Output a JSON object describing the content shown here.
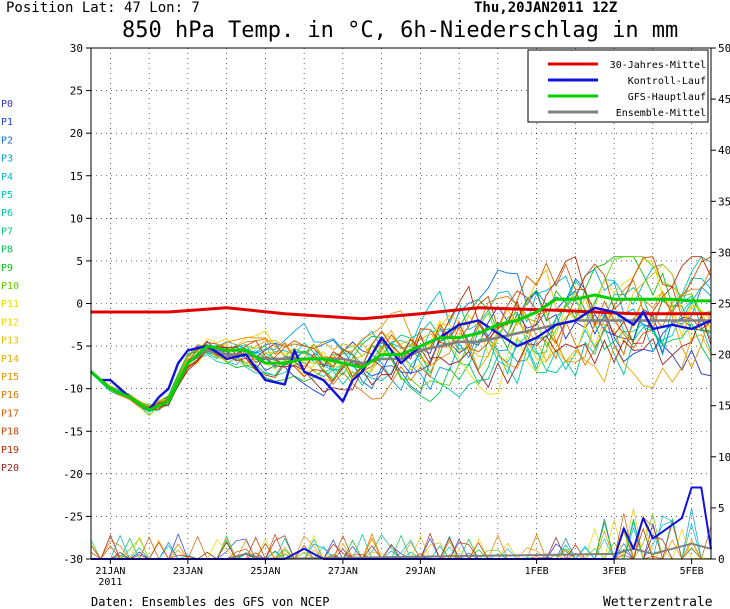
{
  "header": {
    "position": "Position  Lat: 47 Lon: 7",
    "date": "Thu,20JAN2011  12Z",
    "title": "850 hPa Temp. in °C, 6h-Niederschlag in mm"
  },
  "footer": {
    "source": "Daten: Ensembles des GFS von NCEP",
    "brand": "Wetterzentrale"
  },
  "colors": {
    "clim": "#e00000",
    "control": "#1010e0",
    "gfs": "#00d000",
    "mean": "#808080"
  },
  "chart_data": {
    "type": "line",
    "title": "850 hPa Temp. in °C, 6h-Niederschlag in mm",
    "x_unit": "hours from 2011-01-20 12Z",
    "xlim": [
      0,
      384
    ],
    "ylim_left": [
      -30,
      30
    ],
    "ylim_right": [
      0,
      50
    ],
    "yticks_left": [
      30,
      25,
      20,
      15,
      10,
      5,
      0,
      -5,
      -10,
      -15,
      -20,
      -25,
      -30
    ],
    "yticks_right": [
      50,
      45,
      40,
      35,
      30,
      25,
      20,
      15,
      10,
      5,
      0
    ],
    "grid": true,
    "legend_position": "top-right",
    "xticks": [
      {
        "h": 12,
        "label": "21JAN",
        "sub": "2011"
      },
      {
        "h": 60,
        "label": "23JAN"
      },
      {
        "h": 108,
        "label": "25JAN"
      },
      {
        "h": 156,
        "label": "27JAN"
      },
      {
        "h": 204,
        "label": "29JAN"
      },
      {
        "h": 276,
        "label": "1FEB"
      },
      {
        "h": 324,
        "label": "3FEB"
      },
      {
        "h": 372,
        "label": "5FEB"
      }
    ],
    "legend": [
      {
        "label": "30-Jahres-Mittel",
        "color": "#e00000"
      },
      {
        "label": "Kontroll-Lauf",
        "color": "#1010e0"
      },
      {
        "label": "GFS-Hauptlauf",
        "color": "#00d000"
      },
      {
        "label": "Ensemble-Mittel",
        "color": "#808080"
      }
    ],
    "members": [
      {
        "name": "P0",
        "color": "#3030c8"
      },
      {
        "name": "P1",
        "color": "#2040e0"
      },
      {
        "name": "P2",
        "color": "#1070e0"
      },
      {
        "name": "P3",
        "color": "#00a0e0"
      },
      {
        "name": "P4",
        "color": "#00b8d0"
      },
      {
        "name": "P5",
        "color": "#00c8c0"
      },
      {
        "name": "P6",
        "color": "#00c8a0"
      },
      {
        "name": "P7",
        "color": "#00c878"
      },
      {
        "name": "P8",
        "color": "#00c850"
      },
      {
        "name": "P9",
        "color": "#10c010"
      },
      {
        "name": "P10",
        "color": "#60d000"
      },
      {
        "name": "P11",
        "color": "#e8e000"
      },
      {
        "name": "P12",
        "color": "#f0d000"
      },
      {
        "name": "P13",
        "color": "#f0c000"
      },
      {
        "name": "P14",
        "color": "#e8a800"
      },
      {
        "name": "P15",
        "color": "#e89000"
      },
      {
        "name": "P16",
        "color": "#e07800"
      },
      {
        "name": "P17",
        "color": "#d85800"
      },
      {
        "name": "P18",
        "color": "#d04000"
      },
      {
        "name": "P19",
        "color": "#c02800"
      },
      {
        "name": "P20",
        "color": "#a02020"
      }
    ],
    "series": [
      {
        "name": "30-Jahres-Mittel",
        "role": "clim",
        "x": [
          0,
          48,
          84,
          120,
          168,
          204,
          240,
          288,
          336,
          384
        ],
        "values": [
          -1,
          -1,
          -0.5,
          -1.2,
          -1.8,
          -1.2,
          -0.5,
          -0.8,
          -1.2,
          -1.2
        ]
      },
      {
        "name": "Kontroll-Lauf",
        "role": "control",
        "x": [
          0,
          6,
          12,
          24,
          36,
          42,
          48,
          54,
          60,
          72,
          84,
          96,
          108,
          120,
          126,
          132,
          144,
          156,
          162,
          168,
          180,
          192,
          198,
          204,
          216,
          228,
          240,
          252,
          264,
          276,
          288,
          300,
          312,
          324,
          336,
          342,
          348,
          360,
          372,
          384
        ],
        "values": [
          -8,
          -9,
          -9,
          -11,
          -12.5,
          -11,
          -10,
          -7,
          -5.5,
          -5,
          -6.5,
          -6,
          -9,
          -9.5,
          -5.5,
          -8,
          -9,
          -11.5,
          -9,
          -8,
          -4,
          -7,
          -6,
          -5,
          -4,
          -2.5,
          -2,
          -3.5,
          -5,
          -4,
          -2.5,
          -2,
          -0.5,
          -1,
          -2.5,
          -1,
          -3,
          -2.5,
          -3,
          -2
        ]
      },
      {
        "name": "GFS-Hauptlauf",
        "role": "gfs",
        "x": [
          0,
          12,
          24,
          36,
          48,
          60,
          72,
          84,
          96,
          108,
          120,
          132,
          144,
          156,
          168,
          180,
          192,
          204,
          216,
          228,
          240,
          252,
          264,
          276,
          288,
          300,
          312,
          324,
          336,
          348,
          360,
          372,
          384
        ],
        "values": [
          -8,
          -10,
          -11,
          -12.5,
          -11.5,
          -7,
          -5,
          -5.5,
          -5.5,
          -7,
          -7,
          -6.5,
          -6.5,
          -7,
          -7.5,
          -6,
          -6,
          -5,
          -4,
          -4,
          -3.5,
          -2.5,
          -2,
          -1,
          0.5,
          0.5,
          1,
          0.5,
          0.5,
          0.5,
          0.5,
          0.3,
          0.3
        ]
      },
      {
        "name": "Ensemble-Mittel",
        "role": "mean",
        "x": [
          0,
          12,
          24,
          36,
          48,
          60,
          72,
          84,
          96,
          108,
          120,
          132,
          144,
          156,
          168,
          180,
          192,
          204,
          216,
          228,
          240,
          252,
          264,
          276,
          288,
          300,
          312,
          324,
          336,
          348,
          360,
          372,
          384
        ],
        "values": [
          -8,
          -10,
          -11,
          -12.5,
          -11.5,
          -7,
          -5.5,
          -6,
          -6,
          -6.5,
          -6.5,
          -6.5,
          -6.5,
          -6.5,
          -7,
          -6.5,
          -6.5,
          -5.5,
          -5,
          -4.5,
          -4.5,
          -4,
          -3.5,
          -3,
          -2.5,
          -2,
          -2,
          -2,
          -2,
          -2,
          -2,
          -2,
          -2
        ]
      },
      {
        "name": "Kontroll-Lauf Niederschlag",
        "role": "control",
        "axis": "right",
        "x": [
          0,
          120,
          132,
          144,
          324,
          330,
          336,
          342,
          348,
          366,
          372,
          378,
          384
        ],
        "values": [
          0,
          0,
          1,
          0,
          0,
          3,
          1,
          4,
          2,
          4,
          7,
          7,
          1
        ]
      },
      {
        "name": "Ensemble-Mittel Niederschlag",
        "role": "mean",
        "axis": "right",
        "x": [
          0,
          84,
          96,
          108,
          324,
          336,
          348,
          360,
          372,
          384
        ],
        "values": [
          0,
          0,
          0.5,
          0,
          0.5,
          1,
          0.5,
          1,
          1.5,
          1
        ]
      }
    ]
  }
}
